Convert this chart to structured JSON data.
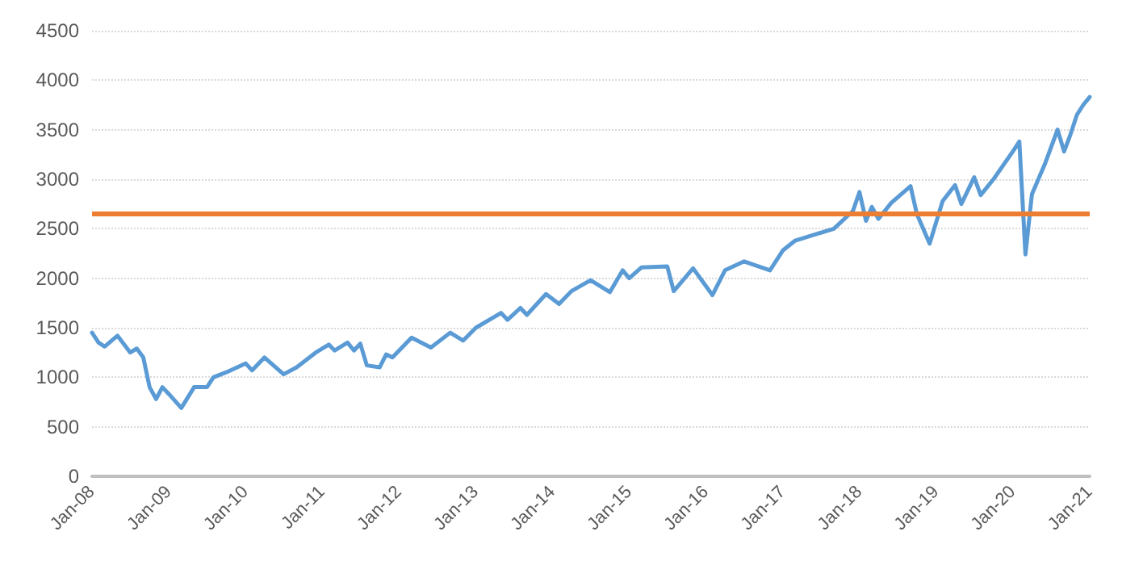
{
  "chart_data": {
    "type": "line",
    "x": [
      "2008-01",
      "2008-02",
      "2008-03",
      "2008-05",
      "2008-07",
      "2008-08",
      "2008-09",
      "2008-10",
      "2008-11",
      "2008-12",
      "2009-01",
      "2009-03",
      "2009-05",
      "2009-07",
      "2009-08",
      "2009-10",
      "2010-01",
      "2010-02",
      "2010-04",
      "2010-07",
      "2010-09",
      "2010-12",
      "2011-02",
      "2011-03",
      "2011-05",
      "2011-06",
      "2011-07",
      "2011-08",
      "2011-10",
      "2011-11",
      "2011-12",
      "2012-03",
      "2012-06",
      "2012-09",
      "2012-11",
      "2013-01",
      "2013-05",
      "2013-06",
      "2013-08",
      "2013-09",
      "2013-12",
      "2014-02",
      "2014-04",
      "2014-07",
      "2014-10",
      "2014-12",
      "2015-01",
      "2015-03",
      "2015-07",
      "2015-08",
      "2015-11",
      "2016-02",
      "2016-04",
      "2016-07",
      "2016-11",
      "2017-01",
      "2017-03",
      "2017-06",
      "2017-09",
      "2017-12",
      "2018-01",
      "2018-02",
      "2018-03",
      "2018-04",
      "2018-06",
      "2018-09",
      "2018-10",
      "2018-12",
      "2019-02",
      "2019-04",
      "2019-05",
      "2019-07",
      "2019-08",
      "2019-10",
      "2020-01",
      "2020-02",
      "2020-03",
      "2020-04",
      "2020-06",
      "2020-08",
      "2020-09",
      "2020-10",
      "2020-11",
      "2020-12",
      "2021-01"
    ],
    "series": [
      {
        "color": "#5b9bd5",
        "values": [
          1450,
          1350,
          1310,
          1420,
          1250,
          1290,
          1200,
          900,
          780,
          900,
          830,
          690,
          900,
          900,
          1000,
          1050,
          1140,
          1070,
          1200,
          1030,
          1100,
          1250,
          1330,
          1270,
          1350,
          1270,
          1340,
          1120,
          1100,
          1230,
          1200,
          1400,
          1300,
          1450,
          1370,
          1500,
          1650,
          1580,
          1700,
          1630,
          1840,
          1740,
          1870,
          1980,
          1860,
          2080,
          2000,
          2110,
          2120,
          1870,
          2100,
          1830,
          2080,
          2170,
          2080,
          2280,
          2380,
          2440,
          2500,
          2680,
          2870,
          2580,
          2720,
          2600,
          2760,
          2930,
          2650,
          2350,
          2780,
          2940,
          2750,
          3020,
          2840,
          3000,
          3280,
          3380,
          2240,
          2850,
          3150,
          3500,
          3280,
          3450,
          3650,
          3750,
          3830
        ]
      }
    ],
    "xlim": [
      "2008-01",
      "2021-01"
    ],
    "xticks": [
      {
        "value": "2008-01",
        "label": "Jan-08"
      },
      {
        "value": "2009-01",
        "label": "Jan-09"
      },
      {
        "value": "2010-01",
        "label": "Jan-10"
      },
      {
        "value": "2011-01",
        "label": "Jan-11"
      },
      {
        "value": "2012-01",
        "label": "Jan-12"
      },
      {
        "value": "2013-01",
        "label": "Jan-13"
      },
      {
        "value": "2014-01",
        "label": "Jan-14"
      },
      {
        "value": "2015-01",
        "label": "Jan-15"
      },
      {
        "value": "2016-01",
        "label": "Jan-16"
      },
      {
        "value": "2017-01",
        "label": "Jan-17"
      },
      {
        "value": "2018-01",
        "label": "Jan-18"
      },
      {
        "value": "2019-01",
        "label": "Jan-19"
      },
      {
        "value": "2020-01",
        "label": "Jan-20"
      },
      {
        "value": "2021-01",
        "label": "Jan-21"
      }
    ],
    "ylim": [
      0,
      4500
    ],
    "yticks": [
      0,
      500,
      1000,
      1500,
      2000,
      2500,
      3000,
      3500,
      4000,
      4500
    ],
    "grid": "y",
    "marker": "none",
    "line_style": "solid",
    "ref_lines": [
      {
        "axis": "y",
        "value": 2650,
        "color": "#ed7d31",
        "line_style": "solid"
      }
    ]
  }
}
